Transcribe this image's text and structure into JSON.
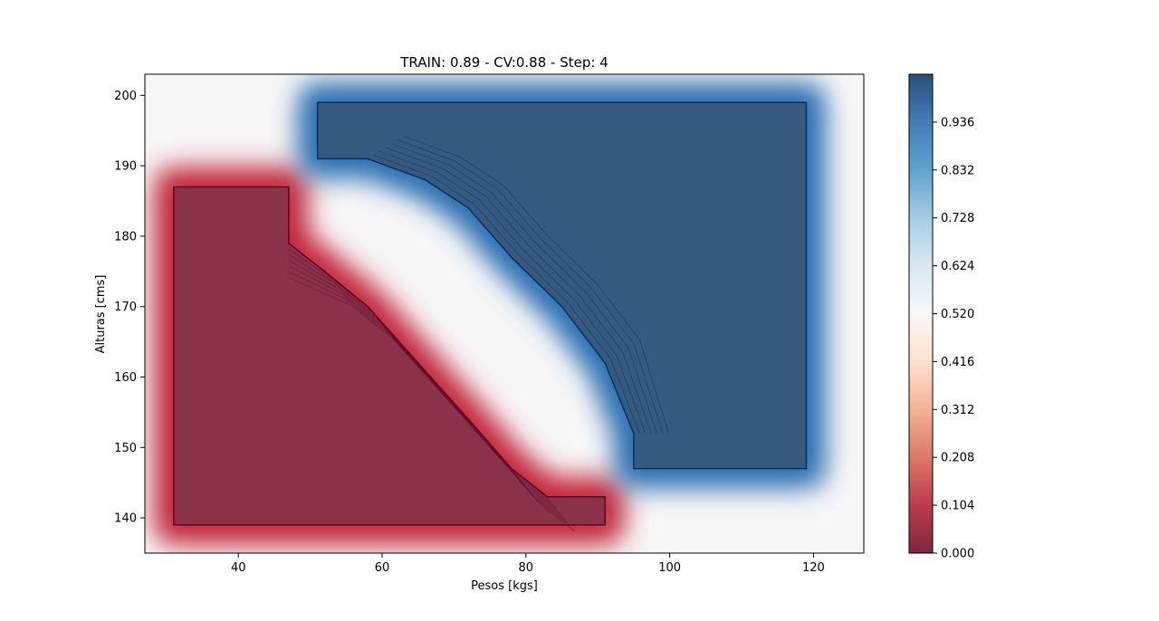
{
  "chart_data": {
    "type": "heatmap",
    "title": "TRAIN: 0.89 - CV:0.88 - Step: 4",
    "xlabel": "Pesos [kgs]",
    "ylabel": "Alturas [cms]",
    "xlim": [
      27,
      127
    ],
    "ylim": [
      135,
      203
    ],
    "x_ticks": [
      40,
      60,
      80,
      100,
      120
    ],
    "y_ticks": [
      140,
      150,
      160,
      170,
      180,
      190,
      200
    ],
    "grid": false,
    "colormap": "RdBu",
    "colorbar": {
      "min": 0.0,
      "max": 1.04,
      "ticks": [
        "0.000",
        "0.104",
        "0.208",
        "0.312",
        "0.416",
        "0.520",
        "0.624",
        "0.728",
        "0.832",
        "0.936"
      ],
      "colors": [
        "#67001f",
        "#b2182b",
        "#d6604d",
        "#f4a582",
        "#fddbc7",
        "#f7f7f7",
        "#d1e5f0",
        "#92c5de",
        "#4393c3",
        "#2166ac",
        "#053061"
      ]
    },
    "regions": [
      {
        "class_value": 0.0,
        "color": "#89324a",
        "polygon": [
          [
            31,
            139
          ],
          [
            91,
            139
          ],
          [
            91,
            143
          ],
          [
            83,
            143
          ],
          [
            78,
            147
          ],
          [
            72,
            154
          ],
          [
            65,
            162
          ],
          [
            58,
            170
          ],
          [
            52,
            175
          ],
          [
            47,
            179
          ],
          [
            47,
            187
          ],
          [
            31,
            187
          ]
        ]
      },
      {
        "class_value": 1.0,
        "color": "#36597e",
        "polygon": [
          [
            51,
            191
          ],
          [
            51,
            199
          ],
          [
            119,
            199
          ],
          [
            119,
            147
          ],
          [
            95,
            147
          ],
          [
            95,
            152
          ],
          [
            91,
            162
          ],
          [
            85,
            170
          ],
          [
            78,
            177
          ],
          [
            72,
            184
          ],
          [
            66,
            188
          ],
          [
            58,
            191
          ]
        ]
      }
    ]
  }
}
